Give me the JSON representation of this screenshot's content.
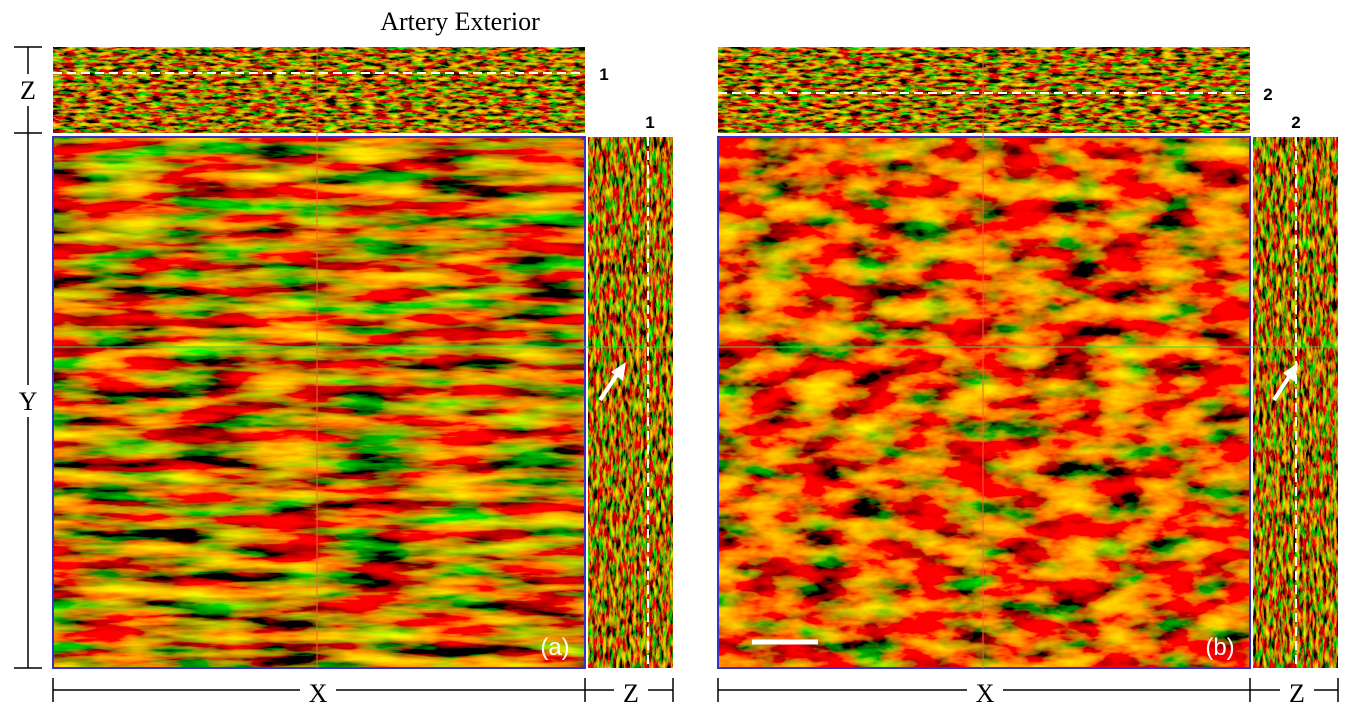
{
  "title": "Artery Exterior",
  "left_axis": {
    "z_label": "Z",
    "y_label": "Y"
  },
  "panels": [
    {
      "label": "(a)",
      "top_line_label": "1",
      "side_line_label": "1",
      "x_label": "X",
      "z_label": "Z"
    },
    {
      "label": "(b)",
      "top_line_label": "2",
      "side_line_label": "2",
      "x_label": "X",
      "z_label": "Z"
    }
  ]
}
